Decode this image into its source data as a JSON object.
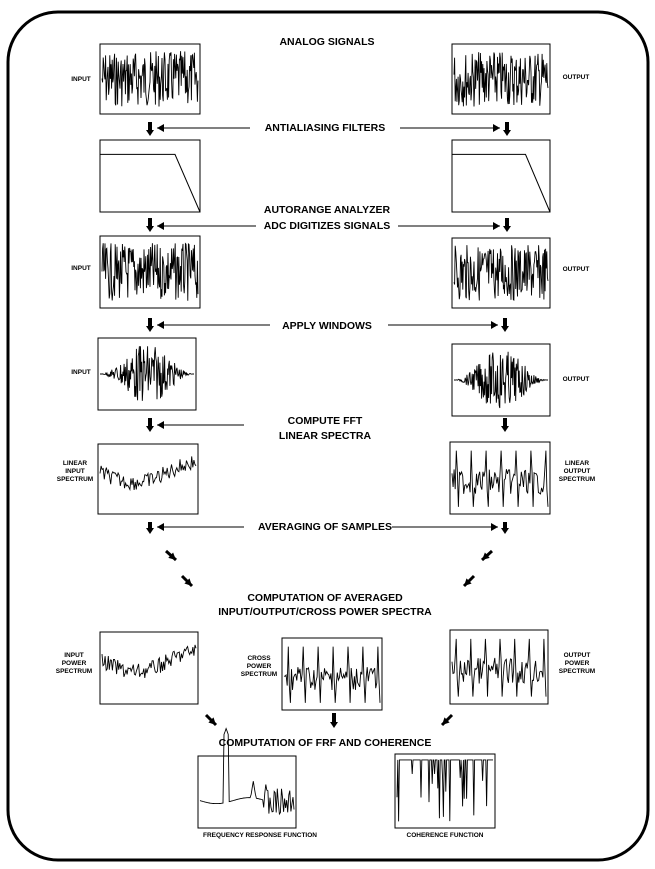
{
  "stages": {
    "analog_signals": "ANALOG SIGNALS",
    "antialiasing_filters": "ANTIALIASING FILTERS",
    "autorange_analyzer": "AUTORANGE ANALYZER",
    "adc_digitizes": "ADC DIGITIZES SIGNALS",
    "apply_windows": "APPLY WINDOWS",
    "compute_fft": "COMPUTE FFT",
    "linear_spectra": "LINEAR SPECTRA",
    "averaging_samples": "AVERAGING OF SAMPLES",
    "computation_averaged": "COMPUTATION OF AVERAGED",
    "power_spectra": "INPUT/OUTPUT/CROSS POWER SPECTRA",
    "computation_frf": "COMPUTATION OF FRF AND COHERENCE"
  },
  "labels": {
    "input": "INPUT",
    "output": "OUTPUT",
    "linear_input_spectrum": [
      "LINEAR",
      "INPUT",
      "SPECTRUM"
    ],
    "linear_output_spectrum": [
      "LINEAR",
      "OUTPUT",
      "SPECTRUM"
    ],
    "input_power_spectrum": [
      "INPUT",
      "POWER",
      "SPECTRUM"
    ],
    "cross_power_spectrum": [
      "CROSS",
      "POWER",
      "SPECTRUM"
    ],
    "output_power_spectrum": [
      "OUTPUT",
      "POWER",
      "SPECTRUM"
    ],
    "frf": "FREQUENCY RESPONSE FUNCTION",
    "coherence": "COHERENCE FUNCTION"
  },
  "panels": [
    {
      "id": "analog-input",
      "kind": "noise"
    },
    {
      "id": "analog-output",
      "kind": "noise"
    },
    {
      "id": "filter-input",
      "kind": "lowpass"
    },
    {
      "id": "filter-output",
      "kind": "lowpass"
    },
    {
      "id": "adc-input",
      "kind": "noise"
    },
    {
      "id": "adc-output",
      "kind": "noise"
    },
    {
      "id": "window-input",
      "kind": "windowed"
    },
    {
      "id": "window-output",
      "kind": "windowed"
    },
    {
      "id": "linear-input-spectrum",
      "kind": "spectrum"
    },
    {
      "id": "linear-output-spectrum",
      "kind": "resonant-spectrum"
    },
    {
      "id": "input-power-spectrum",
      "kind": "spectrum"
    },
    {
      "id": "cross-power-spectrum",
      "kind": "resonant-spectrum"
    },
    {
      "id": "output-power-spectrum",
      "kind": "resonant-spectrum"
    },
    {
      "id": "frf-plot",
      "kind": "frf"
    },
    {
      "id": "coherence-plot",
      "kind": "coherence"
    }
  ],
  "colors": {
    "line": "#000000",
    "background": "#ffffff"
  }
}
